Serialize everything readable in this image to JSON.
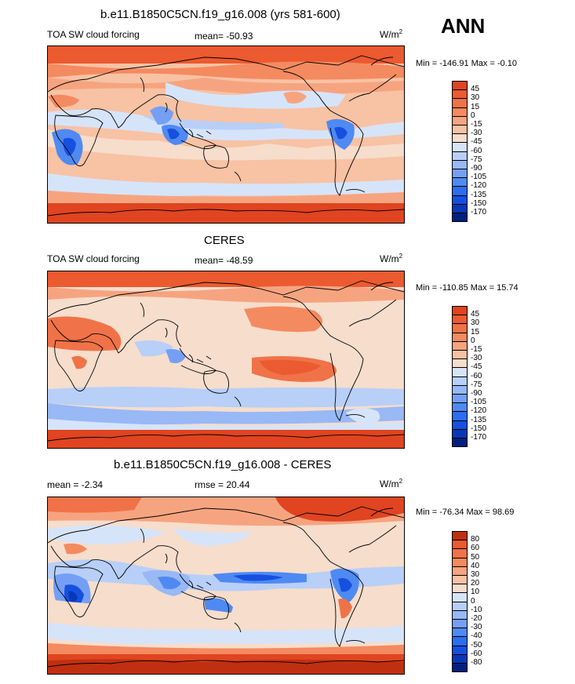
{
  "season": "ANN",
  "colors": {
    "coast": "#000000",
    "scale_a": [
      "#002080",
      "#0838b8",
      "#1550e0",
      "#2d6ef0",
      "#4f8af2",
      "#759ff4",
      "#98b8f6",
      "#b8cff8",
      "#d6e4fa",
      "#f6ddcc",
      "#f8c2a4",
      "#f6a480",
      "#f48a60",
      "#f07248",
      "#ec5a30",
      "#e04420",
      "#c03010",
      "#8c1a08"
    ],
    "scale_b": [
      "#002080",
      "#0838b8",
      "#1550e0",
      "#2d6ef0",
      "#4f8af2",
      "#759ff4",
      "#98b8f6",
      "#b8cff8",
      "#d6e4fa",
      "#f6ddcc",
      "#f8c2a4",
      "#f6a480",
      "#f48a60",
      "#f07248",
      "#ec5a30",
      "#c03010",
      "#8c1a08"
    ]
  },
  "panels": [
    {
      "title": "b.e11.B1850C5CN.f19_g16.008 (yrs 581-600)",
      "left_label": "TOA SW cloud forcing",
      "center_label": "mean= -50.93",
      "units_base": "W/m",
      "units_exp": "2",
      "minmax": "Min = -146.91 Max =  -0.10",
      "levels": [
        "45",
        "30",
        "15",
        "0",
        "-15",
        "-30",
        "-45",
        "-60",
        "-75",
        "-90",
        "-105",
        "-120",
        "-135",
        "-150",
        "-170"
      ]
    },
    {
      "title": "CERES",
      "left_label": "TOA SW cloud forcing",
      "center_label": "mean= -48.59",
      "units_base": "W/m",
      "units_exp": "2",
      "minmax": "Min = -110.85 Max =  15.74",
      "levels": [
        "45",
        "30",
        "15",
        "0",
        "-15",
        "-30",
        "-45",
        "-60",
        "-75",
        "-90",
        "-105",
        "-120",
        "-135",
        "-150",
        "-170"
      ]
    },
    {
      "title": "b.e11.B1850C5CN.f19_g16.008 - CERES",
      "left_label": "mean =  -2.34",
      "center_label": "rmse =  20.44",
      "units_base": "W/m",
      "units_exp": "2",
      "minmax": "Min = -76.34 Max =  98.69",
      "levels": [
        "80",
        "60",
        "50",
        "40",
        "30",
        "20",
        "10",
        "0",
        "-10",
        "-20",
        "-30",
        "-40",
        "-50",
        "-60",
        "-80"
      ]
    }
  ]
}
